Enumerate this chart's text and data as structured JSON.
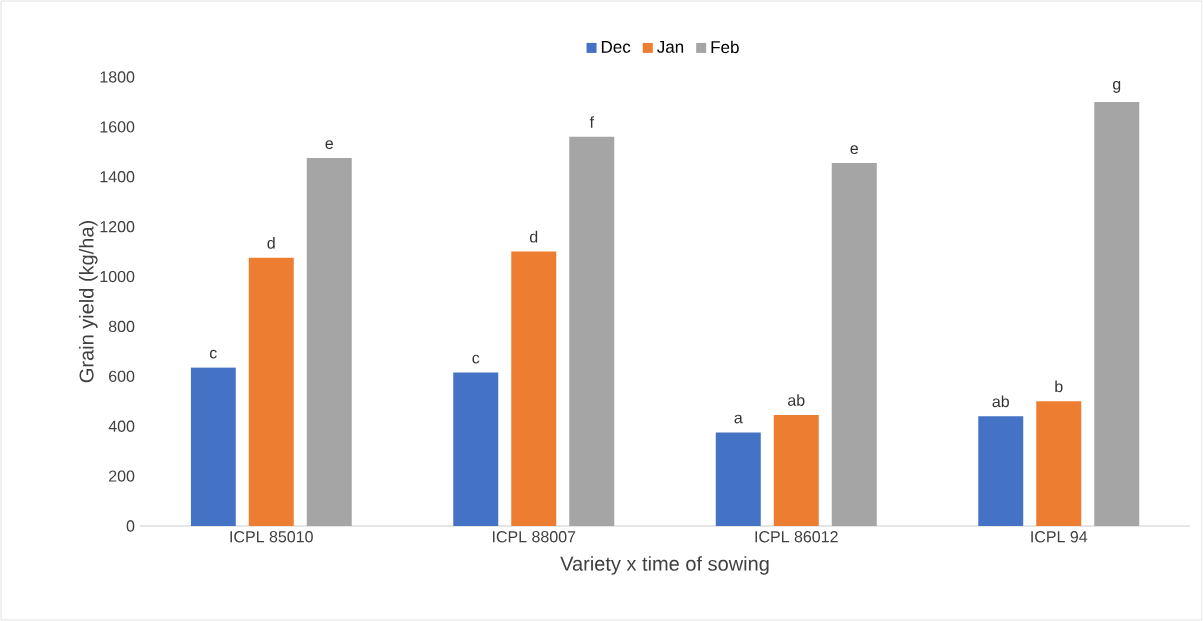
{
  "chart_data": {
    "type": "bar",
    "xlabel": "Variety x time of sowing",
    "ylabel": "Grain yield (kg/ha)",
    "categories": [
      "ICPL 85010",
      "ICPL 88007",
      "ICPL 86012",
      "ICPL 94"
    ],
    "series": [
      {
        "name": "Dec",
        "color": "#4472c4",
        "values": [
          635,
          615,
          375,
          440
        ],
        "value_labels": [
          "c",
          "c",
          "a",
          "ab"
        ]
      },
      {
        "name": "Jan",
        "color": "#ed7d31",
        "values": [
          1075,
          1100,
          445,
          500
        ],
        "value_labels": [
          "d",
          "d",
          "ab",
          "b"
        ]
      },
      {
        "name": "Feb",
        "color": "#a5a5a5",
        "values": [
          1475,
          1560,
          1455,
          1700
        ],
        "value_labels": [
          "e",
          "f",
          "e",
          "g"
        ]
      }
    ],
    "ylim": [
      0,
      1800
    ],
    "yticks": [
      0,
      200,
      400,
      600,
      800,
      1000,
      1200,
      1400,
      1600,
      1800
    ],
    "grid": false,
    "legend": "top"
  }
}
